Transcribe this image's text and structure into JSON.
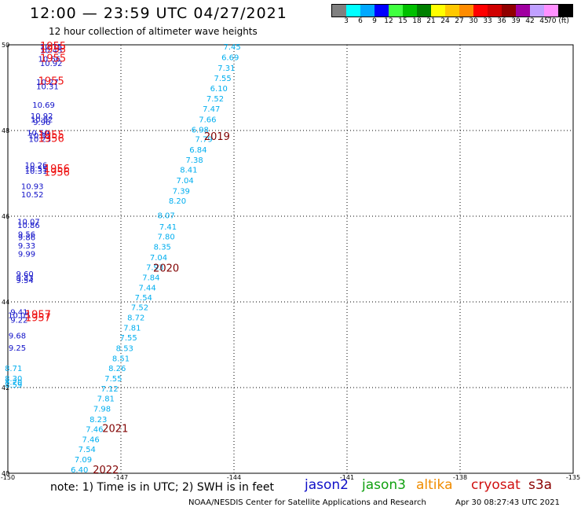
{
  "header": {
    "title": "12:00 — 23:59 UTC 04/27/2021",
    "subtitle": "12 hour collection of altimeter wave heights"
  },
  "color_scale": {
    "labels": [
      "3",
      "6",
      "9",
      "12",
      "15",
      "18",
      "21",
      "24",
      "27",
      "30",
      "33",
      "36",
      "39",
      "42",
      "45",
      "70 (ft)"
    ],
    "colors": [
      "#808080",
      "#00ffff",
      "#00a8ff",
      "#0000ff",
      "#40ff40",
      "#00c000",
      "#008000",
      "#ffff00",
      "#ffc800",
      "#ff8c00",
      "#ff0000",
      "#d00000",
      "#900000",
      "#a000a0",
      "#c0a0ff",
      "#ff90ff",
      "#000000"
    ]
  },
  "footer": {
    "note": "note:  1) Time is in UTC; 2) SWH is in feet",
    "satellites": {
      "jason2": "jason2",
      "jason3": "jason3",
      "altika": "altika",
      "cryosat": "cryosat",
      "s3a": "s3a"
    },
    "credit": "NOAA/NESDIS Center for Satellite Applications and Research",
    "timestamp": "Apr 30 08:27:43 UTC 2021"
  },
  "chart_data": {
    "type": "scatter",
    "title": "12:00 — 23:59 UTC 04/27/2021",
    "xlim": [
      -150,
      -135
    ],
    "ylim": [
      40,
      50
    ],
    "x_ticks": [
      "-150",
      "-147",
      "-144",
      "-141",
      "-138",
      "-135"
    ],
    "y_ticks": [
      "50",
      "48",
      "46",
      "44",
      "42",
      "40"
    ],
    "grid": true,
    "series": [
      {
        "name": "jason2",
        "color": "#1010c8",
        "points": [
          {
            "lon": -148.85,
            "lat": 49.96,
            "label": "10.75"
          },
          {
            "lon": -148.85,
            "lat": 49.88,
            "label": "10.45"
          },
          {
            "lon": -148.9,
            "lat": 49.68,
            "label": "10.66"
          },
          {
            "lon": -148.85,
            "lat": 49.58,
            "label": "10.92"
          },
          {
            "lon": -148.95,
            "lat": 49.14,
            "label": "10.27"
          },
          {
            "lon": -148.95,
            "lat": 49.04,
            "label": "10.31"
          },
          {
            "lon": -149.05,
            "lat": 48.61,
            "label": "10.69"
          },
          {
            "lon": -149.1,
            "lat": 48.35,
            "label": "10.92"
          },
          {
            "lon": -149.1,
            "lat": 48.27,
            "label": "10.92"
          },
          {
            "lon": -149.1,
            "lat": 48.2,
            "label": "9.96"
          },
          {
            "lon": -149.2,
            "lat": 47.95,
            "label": "10.50"
          },
          {
            "lon": -149.15,
            "lat": 47.89,
            "label": "10.37"
          },
          {
            "lon": -149.15,
            "lat": 47.81,
            "label": "10.23"
          },
          {
            "lon": -149.25,
            "lat": 47.2,
            "label": "10.26"
          },
          {
            "lon": -149.25,
            "lat": 47.12,
            "label": "10.55"
          },
          {
            "lon": -149.25,
            "lat": 47.06,
            "label": "10.31"
          },
          {
            "lon": -149.35,
            "lat": 46.71,
            "label": "10.93"
          },
          {
            "lon": -149.35,
            "lat": 46.51,
            "label": "10.52"
          },
          {
            "lon": -149.45,
            "lat": 45.88,
            "label": "10.07"
          },
          {
            "lon": -149.45,
            "lat": 45.8,
            "label": "10.86"
          },
          {
            "lon": -149.5,
            "lat": 45.59,
            "label": "9.56"
          },
          {
            "lon": -149.5,
            "lat": 45.51,
            "label": "9.86"
          },
          {
            "lon": -149.5,
            "lat": 45.32,
            "label": "9.33"
          },
          {
            "lon": -149.5,
            "lat": 45.13,
            "label": "9.99"
          },
          {
            "lon": -149.55,
            "lat": 44.66,
            "label": "9.60"
          },
          {
            "lon": -149.55,
            "lat": 44.57,
            "label": "9.33"
          },
          {
            "lon": -149.55,
            "lat": 44.51,
            "label": "9.54"
          },
          {
            "lon": -149.7,
            "lat": 43.77,
            "label": "9.41"
          },
          {
            "lon": -149.7,
            "lat": 43.7,
            "label": "10.05"
          },
          {
            "lon": -149.7,
            "lat": 43.59,
            "label": "9.22"
          },
          {
            "lon": -149.75,
            "lat": 43.22,
            "label": "9.68"
          },
          {
            "lon": -149.75,
            "lat": 42.94,
            "label": "9.25"
          }
        ]
      },
      {
        "name": "jason3",
        "color": "#00aeef",
        "points": [
          {
            "lon": -144.05,
            "lat": 49.96,
            "label": "7.45"
          },
          {
            "lon": -144.1,
            "lat": 49.72,
            "label": "6.69"
          },
          {
            "lon": -144.2,
            "lat": 49.47,
            "label": "7.31"
          },
          {
            "lon": -144.3,
            "lat": 49.23,
            "label": "7.55"
          },
          {
            "lon": -144.4,
            "lat": 48.99,
            "label": "6.10"
          },
          {
            "lon": -144.5,
            "lat": 48.75,
            "label": "7.52"
          },
          {
            "lon": -144.6,
            "lat": 48.51,
            "label": "7.47"
          },
          {
            "lon": -144.7,
            "lat": 48.27,
            "label": "7.66"
          },
          {
            "lon": -144.9,
            "lat": 48.03,
            "label": "6.98"
          },
          {
            "lon": -144.8,
            "lat": 47.81,
            "label": "7.79"
          },
          {
            "lon": -144.95,
            "lat": 47.56,
            "label": "6.84"
          },
          {
            "lon": -145.05,
            "lat": 47.32,
            "label": "7.38"
          },
          {
            "lon": -145.2,
            "lat": 47.09,
            "label": "8.41"
          },
          {
            "lon": -145.3,
            "lat": 46.84,
            "label": "7.04"
          },
          {
            "lon": -145.4,
            "lat": 46.6,
            "label": "7.39"
          },
          {
            "lon": -145.5,
            "lat": 46.37,
            "label": "8.20"
          },
          {
            "lon": -145.8,
            "lat": 46.03,
            "label": "8.07"
          },
          {
            "lon": -145.75,
            "lat": 45.76,
            "label": "7.41"
          },
          {
            "lon": -145.8,
            "lat": 45.53,
            "label": "7.80"
          },
          {
            "lon": -145.9,
            "lat": 45.29,
            "label": "8.35"
          },
          {
            "lon": -146.0,
            "lat": 45.05,
            "label": "7.04"
          },
          {
            "lon": -146.1,
            "lat": 44.82,
            "label": "7.93"
          },
          {
            "lon": -146.2,
            "lat": 44.58,
            "label": "7.84"
          },
          {
            "lon": -146.3,
            "lat": 44.34,
            "label": "7.44"
          },
          {
            "lon": -146.4,
            "lat": 44.11,
            "label": "7.54"
          },
          {
            "lon": -146.5,
            "lat": 43.88,
            "label": "7.52"
          },
          {
            "lon": -146.6,
            "lat": 43.64,
            "label": "8.72"
          },
          {
            "lon": -146.7,
            "lat": 43.4,
            "label": "7.81"
          },
          {
            "lon": -146.8,
            "lat": 43.17,
            "label": "7.55"
          },
          {
            "lon": -146.9,
            "lat": 42.93,
            "label": "8.53"
          },
          {
            "lon": -147.0,
            "lat": 42.69,
            "label": "8.51"
          },
          {
            "lon": -147.1,
            "lat": 42.46,
            "label": "8.26"
          },
          {
            "lon": -147.2,
            "lat": 42.22,
            "label": "7.55"
          },
          {
            "lon": -147.3,
            "lat": 41.98,
            "label": "7.12"
          },
          {
            "lon": -147.4,
            "lat": 41.75,
            "label": "7.81"
          },
          {
            "lon": -147.5,
            "lat": 41.51,
            "label": "7.98"
          },
          {
            "lon": -147.6,
            "lat": 41.27,
            "label": "8.23"
          },
          {
            "lon": -147.7,
            "lat": 41.04,
            "label": "7.46"
          },
          {
            "lon": -147.8,
            "lat": 40.8,
            "label": "7.46"
          },
          {
            "lon": -147.9,
            "lat": 40.57,
            "label": "7.54"
          },
          {
            "lon": -148.0,
            "lat": 40.33,
            "label": "7.09"
          },
          {
            "lon": -148.1,
            "lat": 40.09,
            "label": "6.40"
          },
          {
            "lon": -149.85,
            "lat": 42.46,
            "label": "8.71"
          },
          {
            "lon": -149.85,
            "lat": 42.22,
            "label": "8.30"
          },
          {
            "lon": -149.85,
            "lat": 42.14,
            "label": "8.20"
          },
          {
            "lon": -149.85,
            "lat": 42.07,
            "label": "8.59"
          }
        ]
      },
      {
        "name": "cryosat",
        "color": "#ee1111",
        "points": [
          {
            "lon": -148.8,
            "lat": 49.96,
            "label": "1955"
          },
          {
            "lon": -148.8,
            "lat": 49.89,
            "label": "1953"
          },
          {
            "lon": -148.8,
            "lat": 49.68,
            "label": "1955"
          },
          {
            "lon": -148.85,
            "lat": 49.15,
            "label": "1955"
          },
          {
            "lon": -148.85,
            "lat": 47.89,
            "label": "1955"
          },
          {
            "lon": -148.85,
            "lat": 47.81,
            "label": "1956"
          },
          {
            "lon": -148.7,
            "lat": 47.1,
            "label": "1956"
          },
          {
            "lon": -148.7,
            "lat": 47.02,
            "label": "1956"
          },
          {
            "lon": -149.2,
            "lat": 43.7,
            "label": "1957"
          },
          {
            "lon": -149.2,
            "lat": 43.62,
            "label": "1957"
          }
        ]
      },
      {
        "name": "s3a",
        "color": "#800000",
        "points": [
          {
            "lon": -144.45,
            "lat": 47.85,
            "label": "2019"
          },
          {
            "lon": -145.8,
            "lat": 44.78,
            "label": "2020"
          },
          {
            "lon": -147.15,
            "lat": 41.04,
            "label": "2021"
          },
          {
            "lon": -147.4,
            "lat": 40.07,
            "label": "2022"
          }
        ]
      }
    ]
  }
}
